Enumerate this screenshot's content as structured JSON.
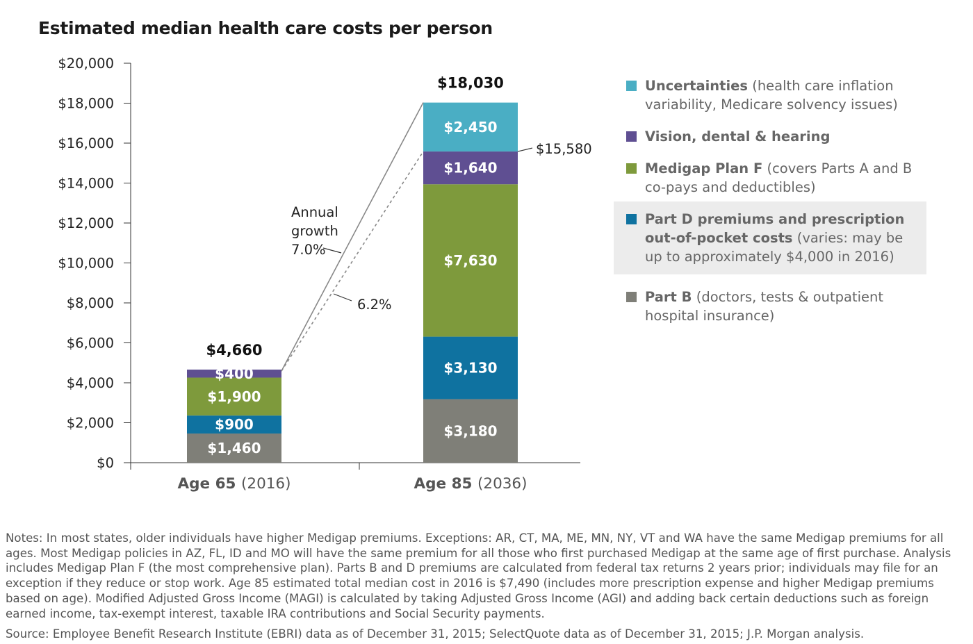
{
  "chart_data": {
    "type": "bar",
    "stacked": true,
    "title": "Estimated median health care costs per person",
    "categories": [
      {
        "label": "Age 65",
        "sub": "(2016)"
      },
      {
        "label": "Age 85",
        "sub": "(2036)"
      }
    ],
    "series": [
      {
        "name": "Part B",
        "color": "#7f7f78",
        "values": [
          1460,
          3180
        ],
        "labels": [
          "$1,460",
          "$3,180"
        ]
      },
      {
        "name": "Part D premiums and prescription out-of-pocket costs",
        "color": "#0f72a0",
        "values": [
          900,
          3130
        ],
        "labels": [
          "$900",
          "$3,130"
        ]
      },
      {
        "name": "Medigap Plan F",
        "color": "#7e9a3c",
        "values": [
          1900,
          7630
        ],
        "labels": [
          "$1,900",
          "$7,630"
        ]
      },
      {
        "name": "Vision, dental & hearing",
        "color": "#5f4f92",
        "values": [
          400,
          1640
        ],
        "labels": [
          "$400",
          "$1,640"
        ]
      },
      {
        "name": "Uncertainties",
        "color": "#4aaec4",
        "values": [
          0,
          2450
        ],
        "labels": [
          "",
          "$2,450"
        ]
      }
    ],
    "totals": [
      "$4,660",
      "$18,030"
    ],
    "yticks": [
      "$0",
      "$2,000",
      "$4,000",
      "$6,000",
      "$8,000",
      "$10,000",
      "$12,000",
      "$14,000",
      "$16,000",
      "$18,000",
      "$20,000"
    ],
    "ylim": [
      0,
      20000
    ],
    "annotations": {
      "growth_label": [
        "Annual",
        "growth",
        "7.0%"
      ],
      "alt_growth": "6.2%",
      "alt_total": "$15,580",
      "alt_total_value": 15580
    }
  },
  "legend": [
    {
      "bold": "Uncertainties",
      "rest": " (health care inflation variability, Medicare solvency issues)",
      "color": "#4aaec4",
      "highlight": false
    },
    {
      "bold": "Vision, dental & hearing",
      "rest": "",
      "color": "#5f4f92",
      "highlight": false
    },
    {
      "bold": "Medigap Plan F",
      "rest": " (covers Parts A and B co-pays and deductibles)",
      "color": "#7e9a3c",
      "highlight": false
    },
    {
      "bold": "Part D premiums and prescription out-of-pocket costs",
      "rest": " (varies: may be up to approximately $4,000 in 2016)",
      "color": "#0f72a0",
      "highlight": true
    },
    {
      "bold": "Part B",
      "rest": " (doctors, tests & outpatient hospital insurance)",
      "color": "#7f7f78",
      "highlight": false
    }
  ],
  "notes": "Notes: In most states, older individuals have higher Medigap premiums. Exceptions: AR, CT, MA, ME, MN, NY, VT and WA have the same Medigap premiums for all ages. Most Medigap policies in AZ, FL, ID and MO will have the same premium for all those who first purchased Medigap at the same age of first purchase. Analysis includes Medigap Plan F (the most comprehensive plan). Parts B and D premiums are calculated from federal tax returns 2 years prior; individuals may file for an exception if they reduce or stop work. Age 85 estimated total median cost in 2016 is $7,490 (includes more prescription expense and higher Medigap premiums based on age). Modified Adjusted Gross Income (MAGI) is calculated by taking Adjusted Gross Income (AGI) and adding back certain deductions such as foreign earned income, tax-exempt interest, taxable IRA contributions and Social Security payments.",
  "source": "Source: Employee Benefit Research Institute (EBRI) data as of December 31, 2015; SelectQuote data as of December 31, 2015; J.P. Morgan analysis."
}
